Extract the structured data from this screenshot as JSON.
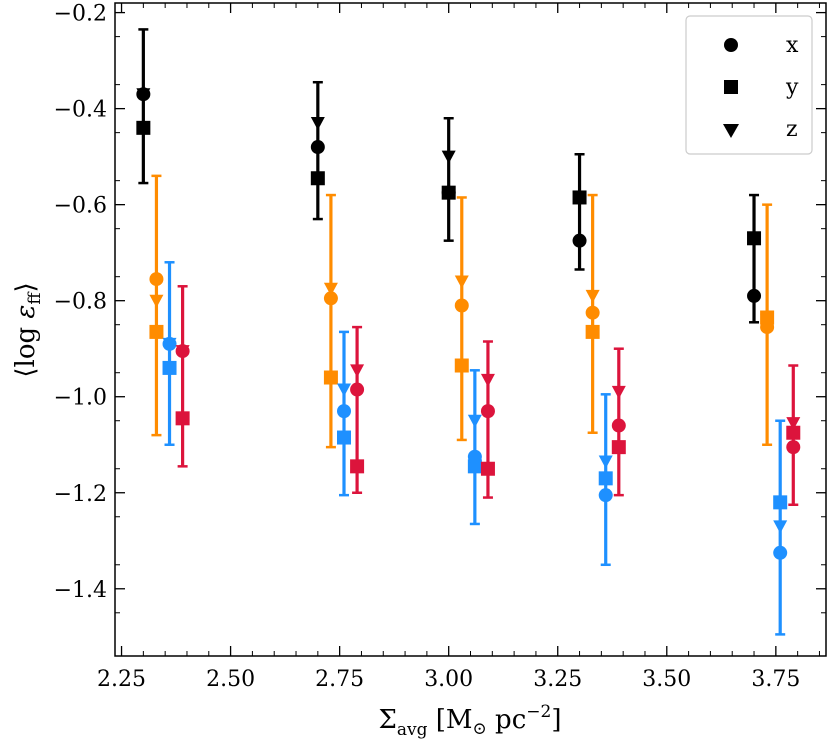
{
  "chart_data": {
    "type": "scatter",
    "title": "",
    "xlabel": "Σ_avg [M⊙ pc^−2]",
    "xlabel_parts": {
      "symbol": "Σ",
      "subscript": "avg",
      "bracket_open": "[M",
      "sun": "⊙",
      "unit": " pc",
      "exponent": "−2",
      "bracket_close": "]"
    },
    "ylabel": "⟨log ε_ff⟩",
    "ylabel_parts": {
      "open": "⟨",
      "log": "log ",
      "eps": "ε",
      "subscript": "ff",
      "close": "⟩"
    },
    "xlim": [
      2.235,
      3.865
    ],
    "ylim": [
      -1.54,
      -0.18
    ],
    "xticks": [
      2.25,
      2.5,
      2.75,
      3.0,
      3.25,
      3.5,
      3.75
    ],
    "xtick_labels": [
      "2.25",
      "2.50",
      "2.75",
      "3.00",
      "3.25",
      "3.50",
      "3.75"
    ],
    "yticks": [
      -1.4,
      -1.2,
      -1.0,
      -0.8,
      -0.6,
      -0.4,
      -0.2
    ],
    "ytick_labels": [
      "−1.4",
      "−1.2",
      "−1.0",
      "−0.8",
      "−0.6",
      "−0.4",
      "−0.2"
    ],
    "legend": {
      "location": "top-right",
      "entries": [
        {
          "label": "x",
          "marker": "circle"
        },
        {
          "label": "y",
          "marker": "square"
        },
        {
          "label": "z",
          "marker": "triangle-down"
        }
      ]
    },
    "series": [
      {
        "name": "black",
        "color": "#000000",
        "offset": 0.0,
        "points": [
          {
            "sigma": 2.3,
            "x": -0.37,
            "y": -0.44,
            "z": -0.37,
            "err_low": -0.555,
            "err_high": -0.235
          },
          {
            "sigma": 2.7,
            "x": -0.48,
            "y": -0.545,
            "z": -0.43,
            "err_low": -0.63,
            "err_high": -0.345
          },
          {
            "sigma": 3.0,
            "x": -0.575,
            "y": -0.575,
            "z": -0.5,
            "err_low": -0.675,
            "err_high": -0.42
          },
          {
            "sigma": 3.3,
            "x": -0.675,
            "y": -0.585,
            "z": -0.585,
            "err_low": -0.735,
            "err_high": -0.495
          },
          {
            "sigma": 3.7,
            "x": -0.79,
            "y": -0.67,
            "z": -0.67,
            "err_low": -0.845,
            "err_high": -0.58
          }
        ]
      },
      {
        "name": "orange",
        "color": "#ff8c00",
        "offset": 0.03,
        "points": [
          {
            "sigma": 2.33,
            "x": -0.755,
            "y": -0.865,
            "z": -0.8,
            "err_low": -1.08,
            "err_high": -0.54
          },
          {
            "sigma": 2.73,
            "x": -0.795,
            "y": -0.96,
            "z": -0.775,
            "err_low": -1.105,
            "err_high": -0.58
          },
          {
            "sigma": 3.03,
            "x": -0.81,
            "y": -0.935,
            "z": -0.76,
            "err_low": -1.09,
            "err_high": -0.585
          },
          {
            "sigma": 3.33,
            "x": -0.825,
            "y": -0.865,
            "z": -0.79,
            "err_low": -1.075,
            "err_high": -0.58
          },
          {
            "sigma": 3.73,
            "x": -0.855,
            "y": -0.835,
            "z": -0.84,
            "err_low": -1.1,
            "err_high": -0.6
          }
        ]
      },
      {
        "name": "blue",
        "color": "#1e90ff",
        "offset": 0.06,
        "points": [
          {
            "sigma": 2.36,
            "x": -0.89,
            "y": -0.94,
            "z": -0.89,
            "err_low": -1.1,
            "err_high": -0.72
          },
          {
            "sigma": 2.76,
            "x": -1.03,
            "y": -1.085,
            "z": -0.985,
            "err_low": -1.205,
            "err_high": -0.865
          },
          {
            "sigma": 3.06,
            "x": -1.125,
            "y": -1.145,
            "z": -1.05,
            "err_low": -1.265,
            "err_high": -0.945
          },
          {
            "sigma": 3.36,
            "x": -1.205,
            "y": -1.17,
            "z": -1.135,
            "err_low": -1.35,
            "err_high": -0.995
          },
          {
            "sigma": 3.76,
            "x": -1.325,
            "y": -1.22,
            "z": -1.27,
            "err_low": -1.495,
            "err_high": -1.05
          }
        ]
      },
      {
        "name": "red",
        "color": "#dc143c",
        "offset": 0.09,
        "points": [
          {
            "sigma": 2.39,
            "x": -0.905,
            "y": -1.045,
            "z": -0.905,
            "err_low": -1.145,
            "err_high": -0.77
          },
          {
            "sigma": 2.79,
            "x": -0.985,
            "y": -1.145,
            "z": -0.945,
            "err_low": -1.2,
            "err_high": -0.855
          },
          {
            "sigma": 3.09,
            "x": -1.03,
            "y": -1.15,
            "z": -0.965,
            "err_low": -1.21,
            "err_high": -0.885
          },
          {
            "sigma": 3.39,
            "x": -1.06,
            "y": -1.105,
            "z": -0.99,
            "err_low": -1.205,
            "err_high": -0.9
          },
          {
            "sigma": 3.79,
            "x": -1.105,
            "y": -1.075,
            "z": -1.055,
            "err_low": -1.225,
            "err_high": -0.935
          }
        ]
      }
    ]
  }
}
